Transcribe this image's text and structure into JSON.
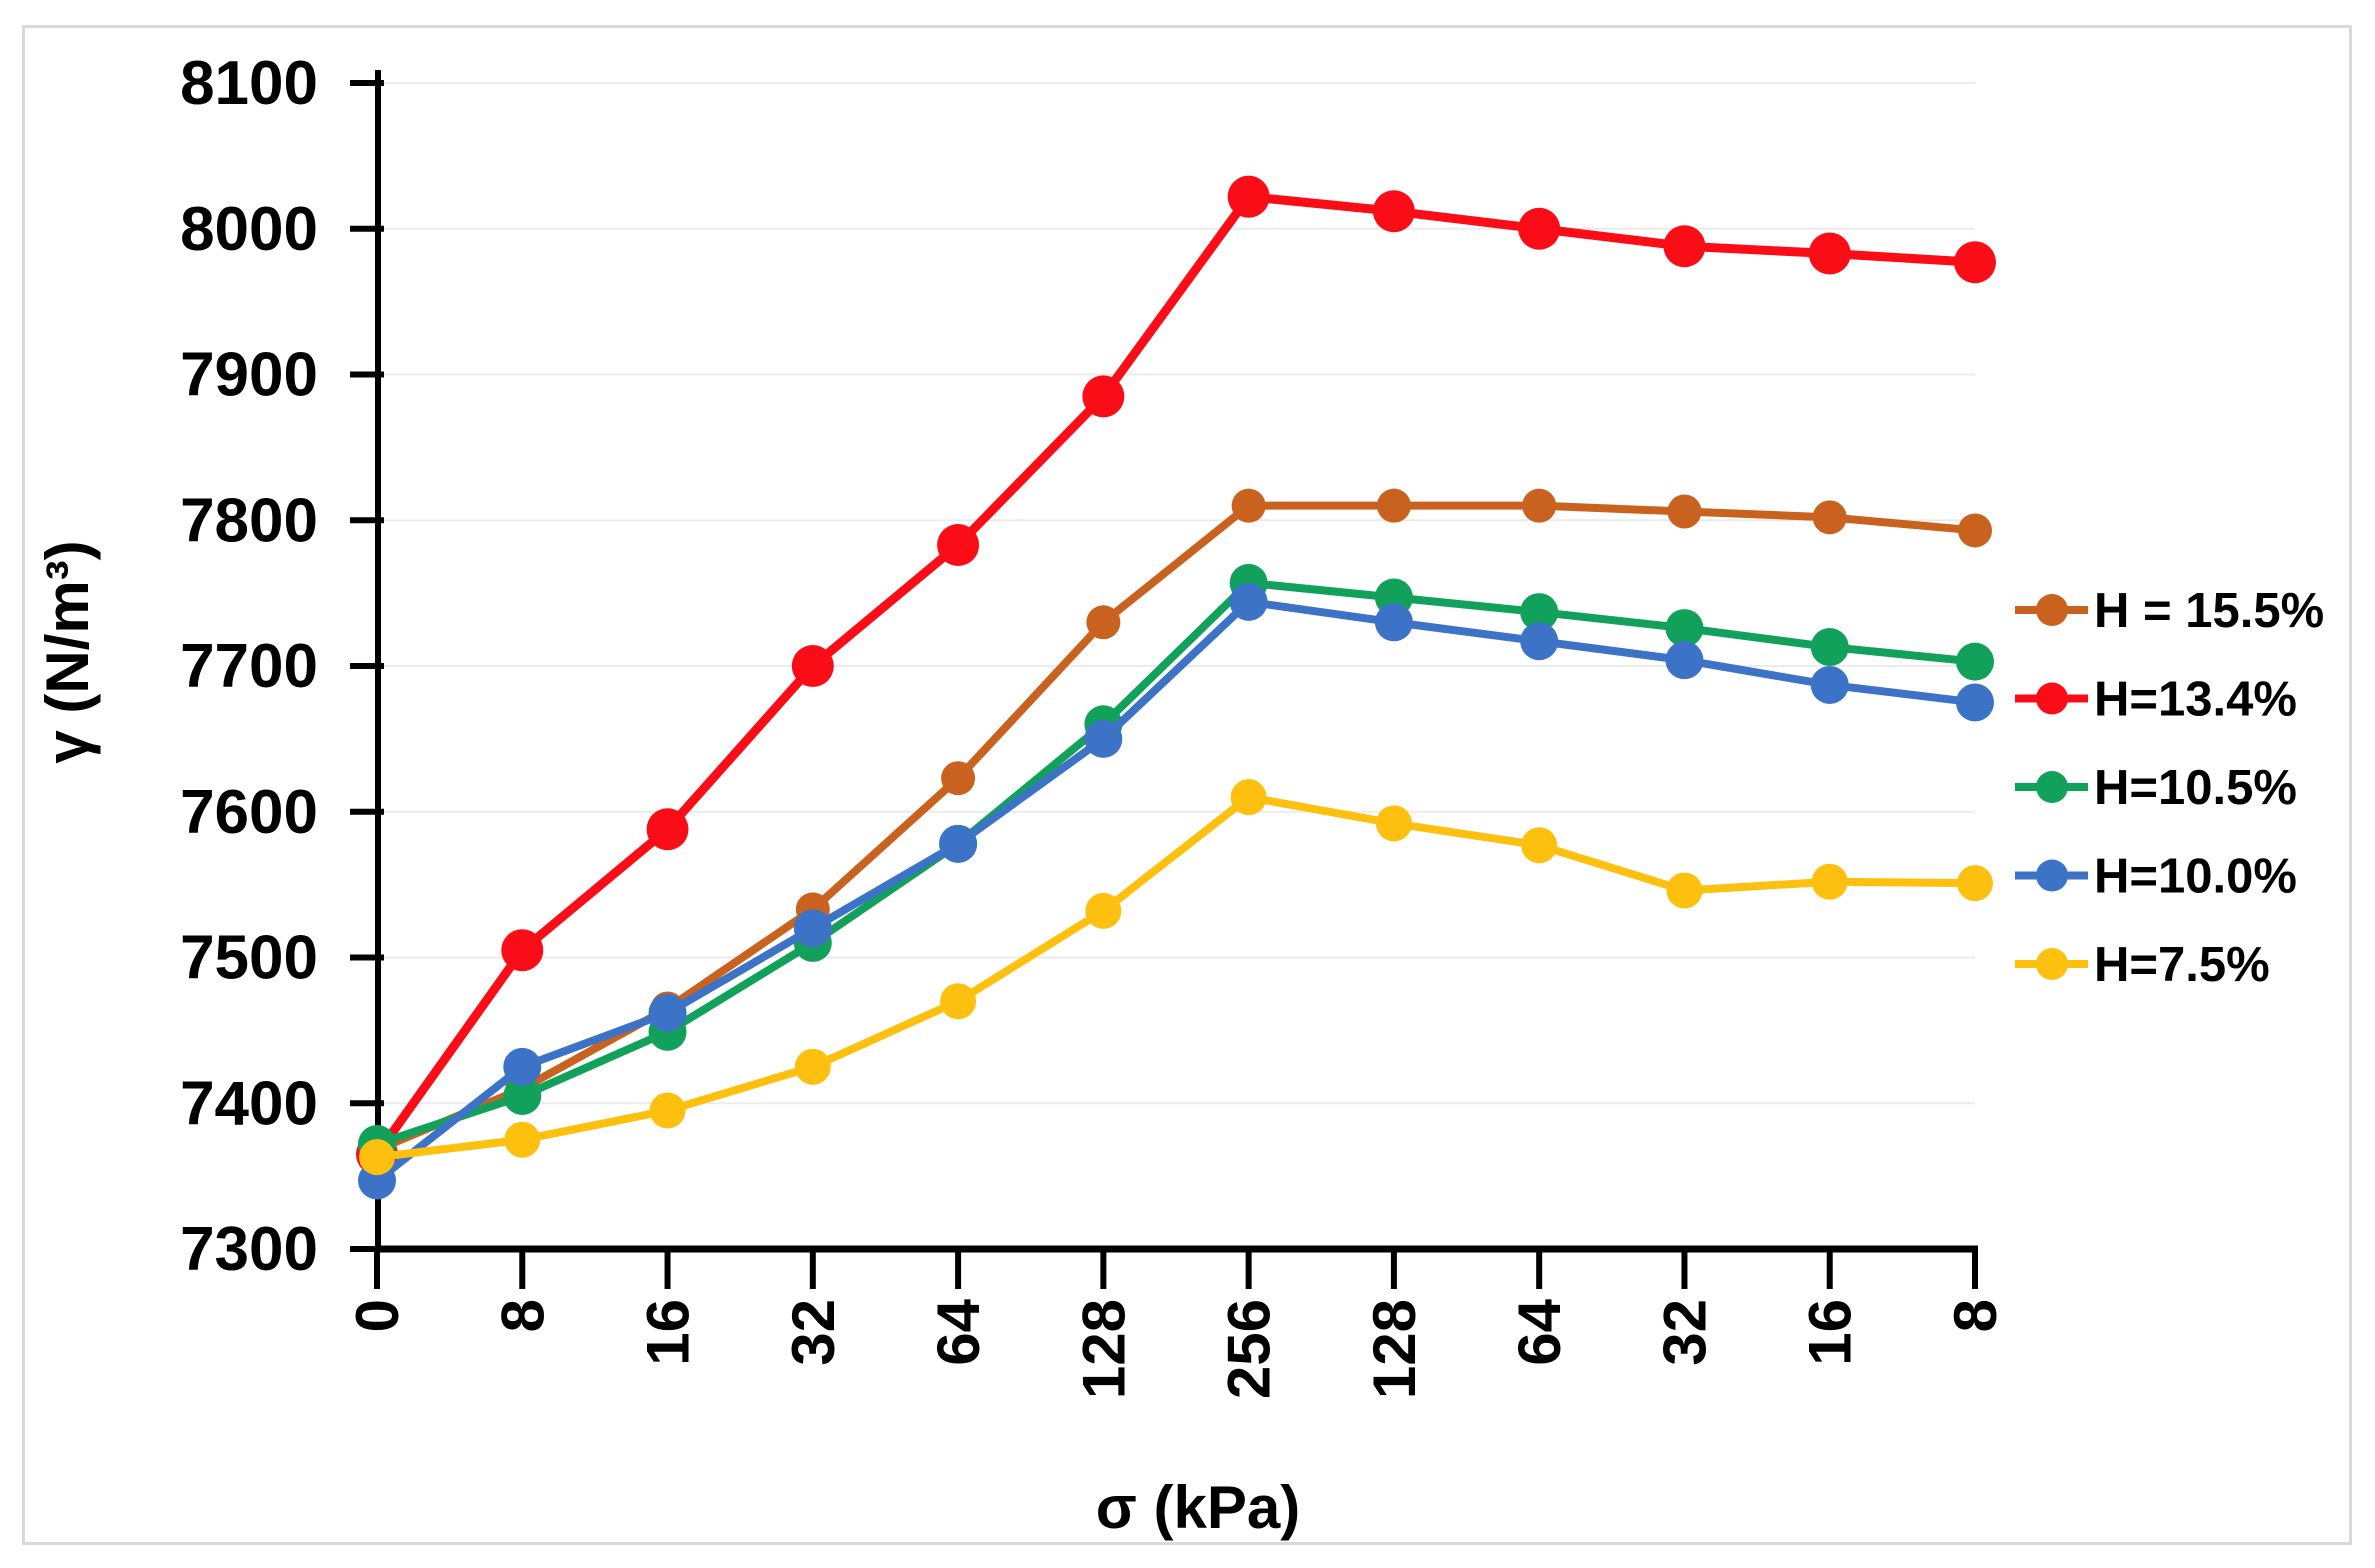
{
  "figure": {
    "background": "#FFFFFF",
    "border_color": "#D9D9D9"
  },
  "chart_data": {
    "type": "line",
    "title": "",
    "xlabel": "σ (kPa)",
    "ylabel": "γ (N/m³)",
    "categories": [
      "0",
      "8",
      "16",
      "32",
      "64",
      "128",
      "256",
      "128",
      "64",
      "32",
      "16",
      "8"
    ],
    "ylim": [
      7300,
      8100
    ],
    "ytick_step": 100,
    "y_ticks": [
      7300,
      7400,
      7500,
      7600,
      7700,
      7800,
      7900,
      8000,
      8100
    ],
    "grid": "horizontal",
    "gridline_color": "#EBEBEB",
    "legend_position": "right",
    "series": [
      {
        "name": "H = 15.5%",
        "color": "#C9621E",
        "values": [
          7368,
          7410,
          7465,
          7533,
          7623,
          7730,
          7810,
          7810,
          7810,
          7806,
          7802,
          7793
        ]
      },
      {
        "name": "H=13.4%",
        "color": "#FB0D17",
        "values": [
          7365,
          7505,
          7588,
          7700,
          7783,
          7885,
          8022,
          8012,
          8000,
          7988,
          7983,
          7977
        ]
      },
      {
        "name": "H=10.5%",
        "color": "#12A15B",
        "values": [
          7372,
          7405,
          7449,
          7510,
          7578,
          7660,
          7757,
          7747,
          7737,
          7726,
          7713,
          7703
        ]
      },
      {
        "name": "H=10.0%",
        "color": "#3C73C6",
        "values": [
          7347,
          7425,
          7462,
          7520,
          7578,
          7650,
          7744,
          7730,
          7717,
          7704,
          7687,
          7675
        ]
      },
      {
        "name": "H=7.5%",
        "color": "#FEC00F",
        "values": [
          7363,
          7375,
          7395,
          7425,
          7470,
          7532,
          7610,
          7592,
          7577,
          7546,
          7552,
          7551
        ]
      }
    ]
  }
}
